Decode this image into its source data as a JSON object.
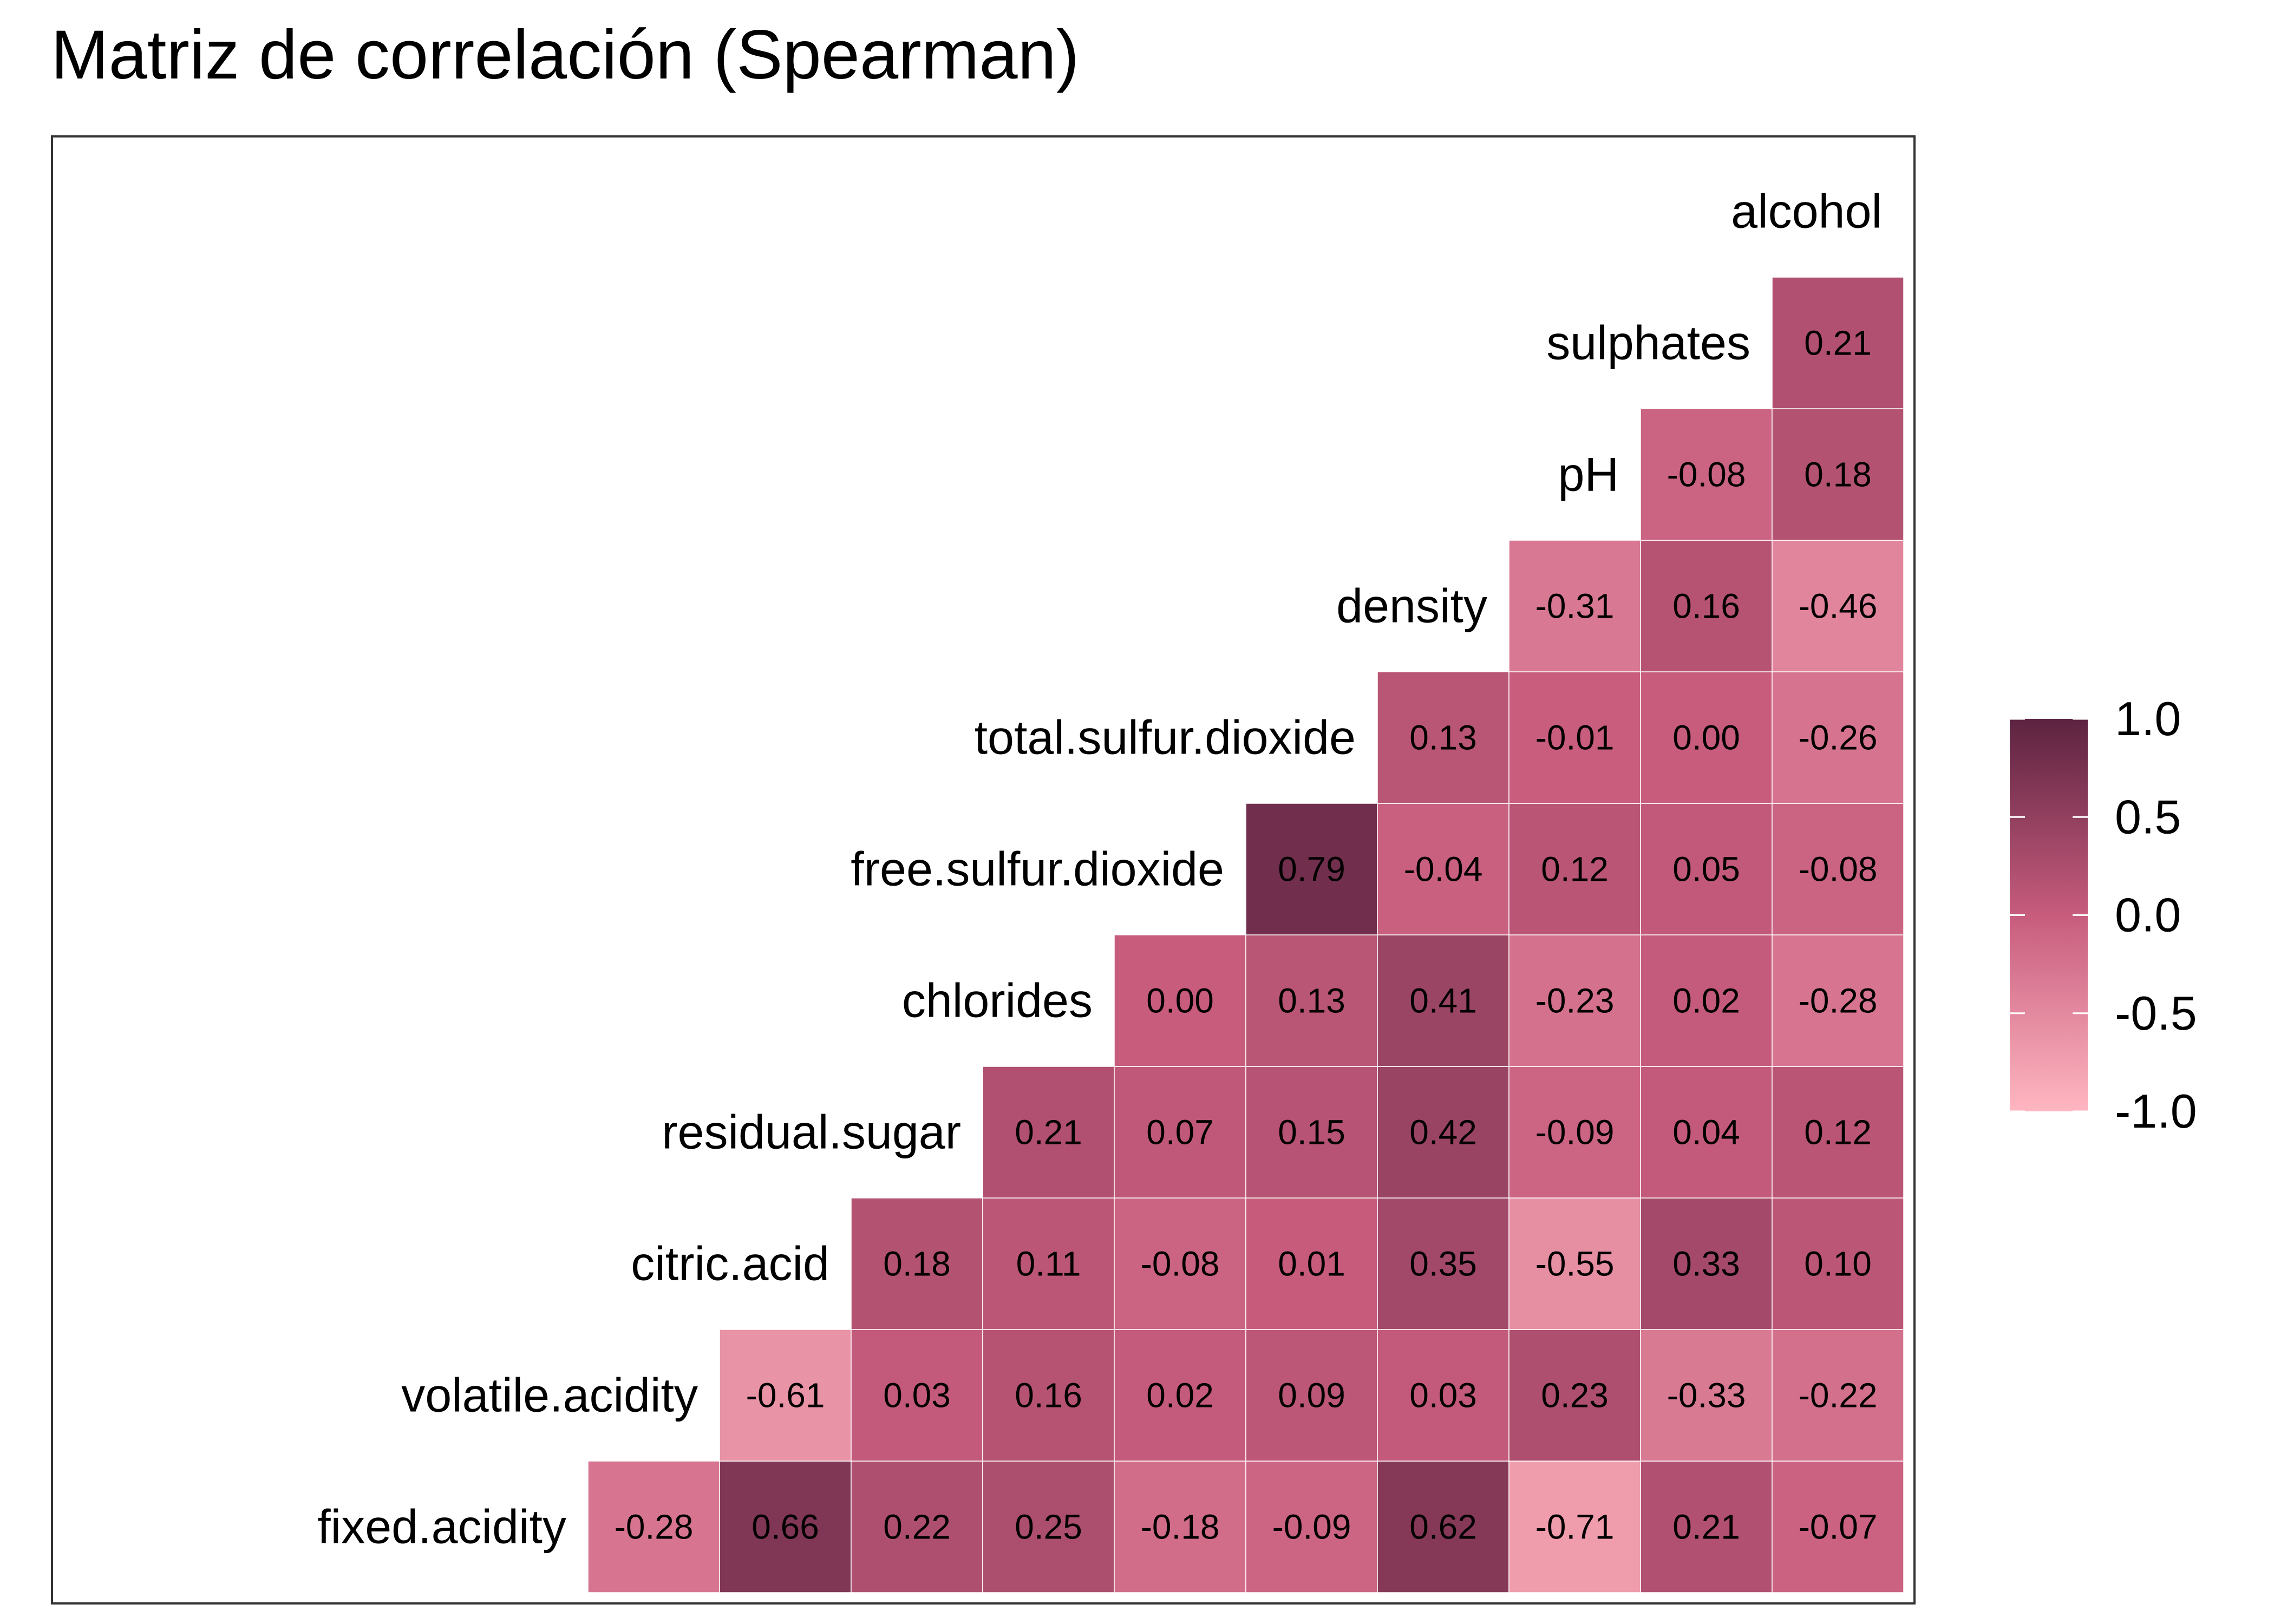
{
  "chart_data": {
    "type": "heatmap",
    "title": "Matriz de correlación (Spearman)",
    "variables": [
      "fixed.acidity",
      "volatile.acidity",
      "citric.acid",
      "residual.sugar",
      "chlorides",
      "free.sulfur.dioxide",
      "total.sulfur.dioxide",
      "density",
      "pH",
      "sulphates",
      "alcohol"
    ],
    "rows": [
      {
        "label": "fixed.acidity",
        "values": [
          "-0.28",
          "0.66",
          "0.22",
          "0.25",
          "-0.18",
          "-0.09",
          "0.62",
          "-0.71",
          "0.21",
          "-0.07"
        ]
      },
      {
        "label": "volatile.acidity",
        "values": [
          "-0.61",
          "0.03",
          "0.16",
          "0.02",
          "0.09",
          "0.03",
          "0.23",
          "-0.33",
          "-0.22"
        ]
      },
      {
        "label": "citric.acid",
        "values": [
          "0.18",
          "0.11",
          "-0.08",
          "0.01",
          "0.35",
          "-0.55",
          "0.33",
          "0.10"
        ]
      },
      {
        "label": "residual.sugar",
        "values": [
          "0.21",
          "0.07",
          "0.15",
          "0.42",
          "-0.09",
          "0.04",
          "0.12"
        ]
      },
      {
        "label": "chlorides",
        "values": [
          "0.00",
          "0.13",
          "0.41",
          "-0.23",
          "0.02",
          "-0.28"
        ]
      },
      {
        "label": "free.sulfur.dioxide",
        "values": [
          "0.79",
          "-0.04",
          "0.12",
          "0.05",
          "-0.08"
        ]
      },
      {
        "label": "total.sulfur.dioxide",
        "values": [
          "0.13",
          "-0.01",
          "0.00",
          "-0.26"
        ]
      },
      {
        "label": "density",
        "values": [
          "-0.31",
          "0.16",
          "-0.46"
        ]
      },
      {
        "label": "pH",
        "values": [
          "-0.08",
          "0.18"
        ]
      },
      {
        "label": "sulphates",
        "values": [
          "0.21"
        ]
      },
      {
        "label": "alcohol",
        "values": []
      }
    ],
    "legend": {
      "ticks": [
        "1.0",
        "0.5",
        "0.0",
        "-0.5",
        "-1.0"
      ],
      "range": [
        -1,
        1
      ],
      "position": "right",
      "colors": {
        "low": "#ffb6c1",
        "mid": "#c75c7d",
        "high": "#5c2340"
      }
    },
    "grid": false
  }
}
